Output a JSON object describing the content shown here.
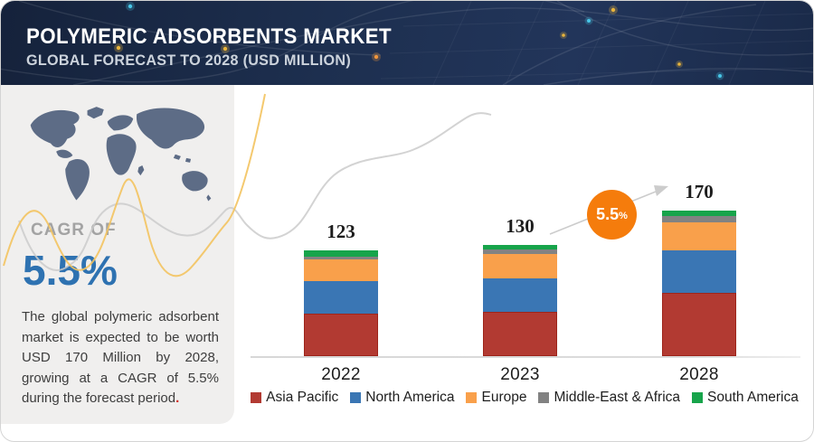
{
  "header": {
    "title": "POLYMERIC ADSORBENTS MARKET",
    "subtitle": "GLOBAL FORECAST TO 2028 (USD MILLION)"
  },
  "sidebar": {
    "cagr_label": "CAGR OF",
    "cagr_value": "5.5%",
    "description": "The global polymeric adsorbent market is expected to be worth USD 170 Million by 2028, growing at a CAGR of 5.5% during the forecast period",
    "description_period": "."
  },
  "chart_data": {
    "type": "bar",
    "stacked": true,
    "title": "",
    "xlabel": "",
    "ylabel": "USD Million",
    "grid": false,
    "legend_position": "bottom",
    "categories": [
      "2022",
      "2023",
      "2028"
    ],
    "totals": [
      123,
      130,
      170
    ],
    "series": [
      {
        "name": "Asia Pacific",
        "color": "#b23a32",
        "values": [
          49,
          52,
          74
        ]
      },
      {
        "name": "North America",
        "color": "#3a76b4",
        "values": [
          38,
          39,
          49
        ]
      },
      {
        "name": "Europe",
        "color": "#f9a04b",
        "values": [
          26,
          28,
          33
        ]
      },
      {
        "name": "Middle-East & Africa",
        "color": "#828282",
        "values": [
          3,
          5,
          7
        ]
      },
      {
        "name": "South America",
        "color": "#17a44b",
        "values": [
          7,
          6,
          7
        ]
      }
    ],
    "annotation": {
      "text": "5.5",
      "suffix": "%",
      "color": "#f57c0c"
    }
  }
}
